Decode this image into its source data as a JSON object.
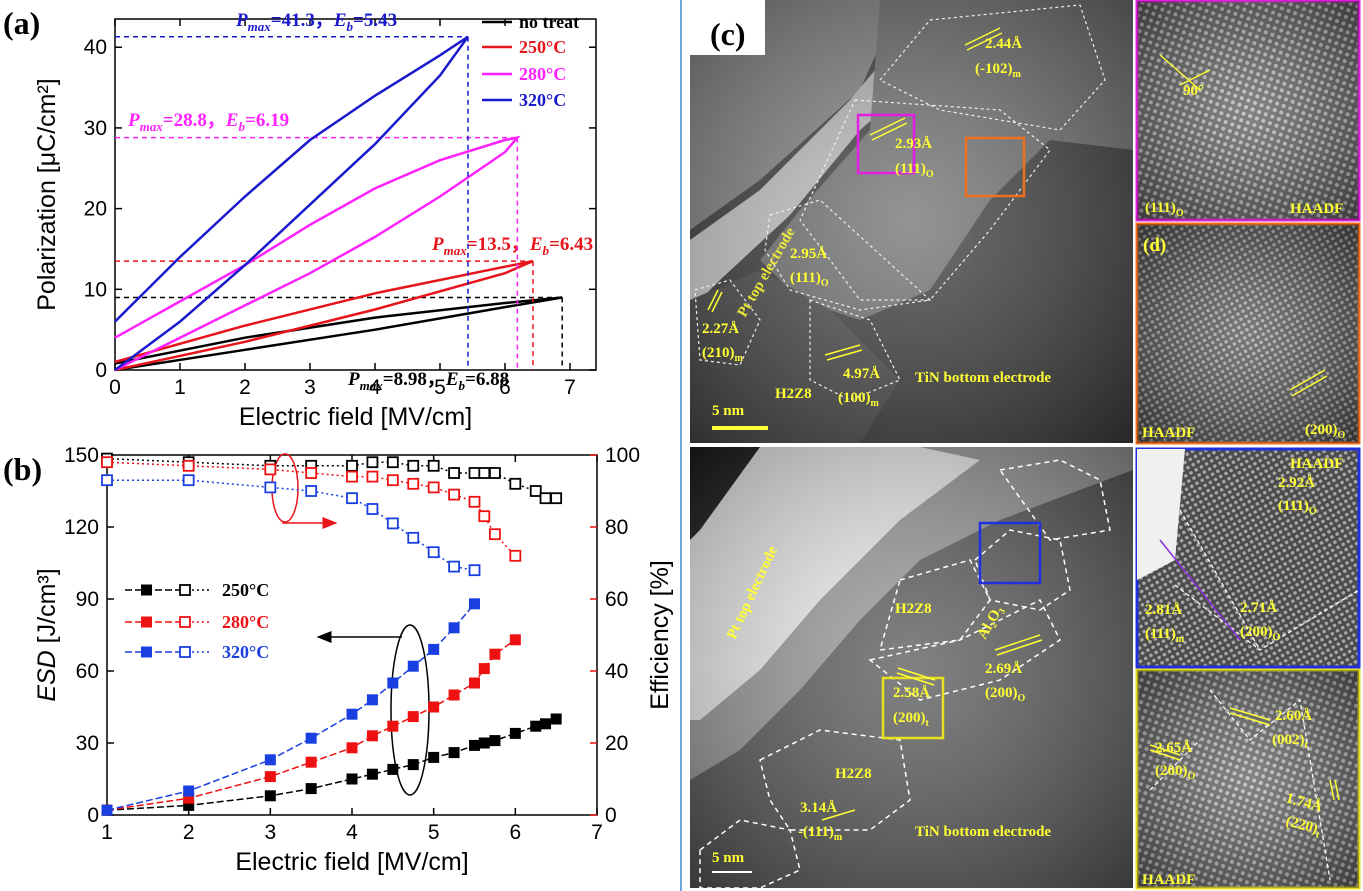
{
  "chart_data": [
    {
      "type": "line",
      "panel_label": "(a)",
      "xlabel": "Electric field [MV/cm]",
      "ylabel": "Polarization [μC/cm²]",
      "xlim": [
        0,
        7.4
      ],
      "xticks": [
        0,
        1,
        2,
        3,
        4,
        5,
        6,
        7
      ],
      "ylim": [
        0,
        43.5
      ],
      "yticks": [
        0,
        10,
        20,
        30,
        40
      ],
      "legend": "upper right",
      "annotation": {
        "p": "P",
        "p_sub": "max",
        "eq": "=",
        "sep": "，",
        "e": "E",
        "e_sub": "b"
      },
      "series": [
        {
          "name": "no treat",
          "color": "#000000",
          "pmax": 8.98,
          "eb": 6.88,
          "x": [
            0,
            2,
            4,
            6,
            6.88,
            6,
            4,
            2,
            0
          ],
          "values": [
            0,
            2.5,
            5,
            7.8,
            8.98,
            8.3,
            6.5,
            4,
            0.8
          ]
        },
        {
          "name": "250°C",
          "color": "#e8141b",
          "pmax": 13.5,
          "eb": 6.43,
          "x": [
            0,
            2,
            4,
            6,
            6.43,
            6,
            4,
            2,
            0
          ],
          "values": [
            0,
            3.5,
            7.5,
            12,
            13.5,
            12.8,
            9.5,
            5.5,
            1
          ]
        },
        {
          "name": "280°C",
          "color": "#ff22ff",
          "pmax": 28.8,
          "eb": 6.19,
          "x": [
            0,
            1,
            2,
            3,
            4,
            5,
            6,
            6.19,
            6,
            5,
            4,
            3,
            2,
            1,
            0
          ],
          "values": [
            0,
            4,
            8,
            12,
            16.5,
            21.5,
            27,
            28.8,
            28.5,
            26,
            22.5,
            18,
            13,
            8.5,
            4
          ]
        },
        {
          "name": "320°C",
          "color": "#1a1acd",
          "pmax": 41.3,
          "eb": 5.43,
          "x": [
            0,
            1,
            2,
            3,
            4,
            5,
            5.43,
            5,
            4,
            3,
            2,
            1,
            0
          ],
          "values": [
            0,
            6,
            13,
            20.5,
            28,
            36.5,
            41.3,
            39,
            34,
            28.5,
            21.5,
            14,
            6
          ]
        }
      ]
    },
    {
      "type": "line",
      "panel_label": "(b)",
      "xlabel": "Electric field [MV/cm]",
      "ylabel": "ESD",
      "ylabel_unit": " [J/cm³]",
      "y2label": "Efficiency [%]",
      "xlim": [
        1,
        7
      ],
      "xticks": [
        1,
        2,
        3,
        4,
        5,
        6,
        7
      ],
      "ylim": [
        0,
        150
      ],
      "yticks": [
        0,
        30,
        60,
        90,
        120,
        150
      ],
      "y2lim": [
        0,
        100
      ],
      "y2ticks": [
        0,
        20,
        40,
        60,
        80,
        100
      ],
      "y2color": "#ee1111",
      "legend": "center left",
      "series": [
        {
          "name": "250°C",
          "color": "#000000",
          "x": [
            1,
            2,
            3,
            3.5,
            4,
            4.25,
            4.5,
            4.75,
            5,
            5.25,
            5.5,
            5.62,
            5.75,
            6,
            6.25,
            6.37,
            6.5
          ],
          "values": [
            2,
            4,
            8,
            11,
            15,
            17,
            19,
            21,
            24,
            26,
            29,
            30,
            31,
            34,
            37,
            38,
            40
          ],
          "y2_values": [
            99,
            98,
            97,
            97,
            97,
            98,
            98,
            97,
            97,
            95,
            95,
            95,
            95,
            92,
            90,
            88,
            88
          ]
        },
        {
          "name": "280°C",
          "color": "#ee1111",
          "x": [
            1,
            2,
            3,
            3.5,
            4,
            4.25,
            4.5,
            4.75,
            5,
            5.25,
            5.5,
            5.62,
            5.75,
            6
          ],
          "values": [
            2,
            7,
            16,
            22,
            28,
            33,
            37,
            41,
            45,
            50,
            55,
            61,
            67,
            73
          ],
          "y2_values": [
            98,
            97,
            96,
            95,
            94,
            94,
            93,
            92,
            91,
            89,
            87,
            83,
            78,
            72
          ]
        },
        {
          "name": "320°C",
          "color": "#1a3fe0",
          "x": [
            1,
            2,
            3,
            3.5,
            4,
            4.25,
            4.5,
            4.75,
            5,
            5.25,
            5.5
          ],
          "values": [
            2,
            10,
            23,
            32,
            42,
            48,
            55,
            62,
            69,
            78,
            88
          ],
          "y2_values": [
            93,
            93,
            91,
            90,
            88,
            85,
            81,
            77,
            73,
            69,
            68
          ]
        }
      ]
    }
  ],
  "panel_c": {
    "panel_label": "(c)",
    "inset_label": "(d)",
    "labels": [
      {
        "text": "2.44Å"
      },
      {
        "text": "(-102)",
        "sub": "m"
      },
      {
        "text": "2.93Å"
      },
      {
        "text": "(111)",
        "sub": "O"
      },
      {
        "text": "Pt top electrode"
      },
      {
        "text": "2.95Å"
      },
      {
        "text": "(111)",
        "sub": "O"
      },
      {
        "text": "2.27Å"
      },
      {
        "text": "(210)",
        "sub": "m"
      },
      {
        "text": "4.97Å"
      },
      {
        "text": "(100)",
        "sub": "m"
      },
      {
        "text": "H2Z8"
      },
      {
        "text": "TiN bottom electrode"
      },
      {
        "text": "5 nm"
      },
      {
        "text": "90°"
      },
      {
        "text": "(111)",
        "sub": "O"
      },
      {
        "text": "HAADF"
      },
      {
        "text": "HAADF"
      },
      {
        "text": "(200)",
        "sub": "O"
      },
      {
        "text": "Pt top electrode"
      },
      {
        "text": "H2Z8"
      },
      {
        "text": "Al₂O₃"
      },
      {
        "text": "2.69Å"
      },
      {
        "text": "(200)",
        "sub": "O"
      },
      {
        "text": "2.58Å"
      },
      {
        "text": "(200)",
        "sub": "t"
      },
      {
        "text": "H2Z8"
      },
      {
        "text": "3.14Å"
      },
      {
        "text": "-(111)",
        "sub": "m"
      },
      {
        "text": "TiN bottom electrode"
      },
      {
        "text": "5 nm"
      },
      {
        "text": "HAADF"
      },
      {
        "text": "2.92Å"
      },
      {
        "text": "(111)",
        "sub": "O"
      },
      {
        "text": "2.71Å"
      },
      {
        "text": "(200)",
        "sub": "O"
      },
      {
        "text": "2.81Å"
      },
      {
        "text": "(111)",
        "sub": "m"
      },
      {
        "text": "2.65Å"
      },
      {
        "text": "(200)",
        "sub": "O"
      },
      {
        "text": "2.60Å"
      },
      {
        "text": "(002)",
        "sub": "t"
      },
      {
        "text": "1.74Å"
      },
      {
        "text": "(220)",
        "sub": "t"
      },
      {
        "text": "HAADF"
      }
    ]
  }
}
